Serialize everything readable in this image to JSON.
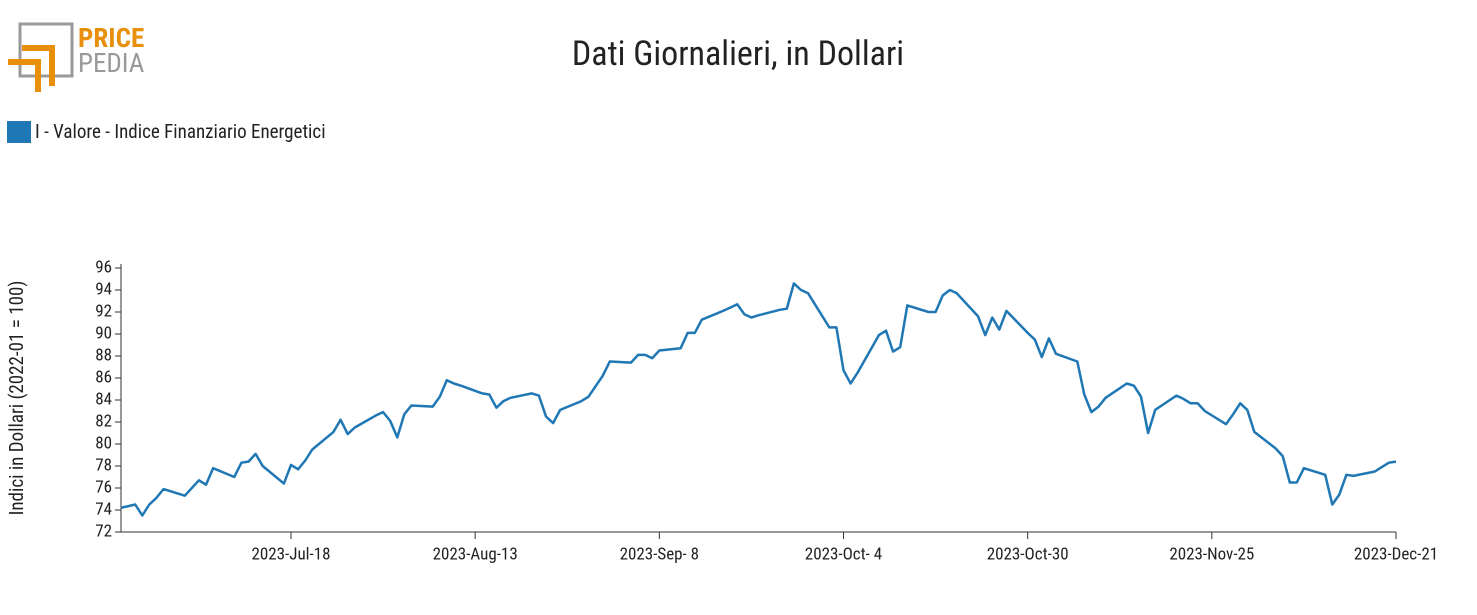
{
  "logo": {
    "line1": "PRICE",
    "line2": "PEDIA"
  },
  "chart_data": {
    "type": "line",
    "title": "Dati Giornalieri, in Dollari",
    "y_label": "Indici in Dollari (2022-01 = 100)",
    "legend_position": "top-left",
    "xlim": [
      "2023-06-24",
      "2023-12-21"
    ],
    "xticks": [
      {
        "value": "2023-07-18",
        "label": "2023-Jul-18"
      },
      {
        "value": "2023-08-13",
        "label": "2023-Aug-13"
      },
      {
        "value": "2023-09-08",
        "label": "2023-Sep- 8"
      },
      {
        "value": "2023-10-04",
        "label": "2023-Oct- 4"
      },
      {
        "value": "2023-10-30",
        "label": "2023-Oct-30"
      },
      {
        "value": "2023-11-25",
        "label": "2023-Nov-25"
      },
      {
        "value": "2023-12-21",
        "label": "2023-Dec-21"
      }
    ],
    "ylim": [
      72,
      96
    ],
    "yticks": [
      72,
      74,
      76,
      78,
      80,
      82,
      84,
      86,
      88,
      90,
      92,
      94,
      96
    ],
    "x": [
      "2023-06-24",
      "2023-06-26",
      "2023-06-27",
      "2023-06-28",
      "2023-06-29",
      "2023-06-30",
      "2023-07-03",
      "2023-07-05",
      "2023-07-06",
      "2023-07-07",
      "2023-07-10",
      "2023-07-11",
      "2023-07-12",
      "2023-07-13",
      "2023-07-14",
      "2023-07-17",
      "2023-07-18",
      "2023-07-19",
      "2023-07-20",
      "2023-07-21",
      "2023-07-24",
      "2023-07-25",
      "2023-07-26",
      "2023-07-27",
      "2023-07-30",
      "2023-07-31",
      "2023-08-01",
      "2023-08-02",
      "2023-08-03",
      "2023-08-04",
      "2023-08-07",
      "2023-08-08",
      "2023-08-09",
      "2023-08-10",
      "2023-08-11",
      "2023-08-14",
      "2023-08-15",
      "2023-08-16",
      "2023-08-17",
      "2023-08-18",
      "2023-08-21",
      "2023-08-22",
      "2023-08-23",
      "2023-08-24",
      "2023-08-25",
      "2023-08-28",
      "2023-08-29",
      "2023-08-31",
      "2023-09-01",
      "2023-09-04",
      "2023-09-05",
      "2023-09-06",
      "2023-09-07",
      "2023-09-08",
      "2023-09-11",
      "2023-09-12",
      "2023-09-13",
      "2023-09-14",
      "2023-09-17",
      "2023-09-18",
      "2023-09-19",
      "2023-09-20",
      "2023-09-21",
      "2023-09-22",
      "2023-09-25",
      "2023-09-26",
      "2023-09-27",
      "2023-09-28",
      "2023-09-29",
      "2023-10-02",
      "2023-10-03",
      "2023-10-04",
      "2023-10-05",
      "2023-10-06",
      "2023-10-09",
      "2023-10-10",
      "2023-10-11",
      "2023-10-12",
      "2023-10-13",
      "2023-10-16",
      "2023-10-17",
      "2023-10-18",
      "2023-10-19",
      "2023-10-20",
      "2023-10-23",
      "2023-10-24",
      "2023-10-25",
      "2023-10-26",
      "2023-10-27",
      "2023-10-30",
      "2023-10-31",
      "2023-11-01",
      "2023-11-02",
      "2023-11-03",
      "2023-11-06",
      "2023-11-07",
      "2023-11-08",
      "2023-11-09",
      "2023-11-10",
      "2023-11-13",
      "2023-11-14",
      "2023-11-15",
      "2023-11-16",
      "2023-11-17",
      "2023-11-20",
      "2023-11-21",
      "2023-11-22",
      "2023-11-23",
      "2023-11-24",
      "2023-11-27",
      "2023-11-28",
      "2023-11-29",
      "2023-11-30",
      "2023-12-01",
      "2023-12-04",
      "2023-12-05",
      "2023-12-06",
      "2023-12-07",
      "2023-12-08",
      "2023-12-11",
      "2023-12-12",
      "2023-12-13",
      "2023-12-14",
      "2023-12-15",
      "2023-12-18",
      "2023-12-19",
      "2023-12-20",
      "2023-12-21"
    ],
    "series": [
      {
        "name": "I - Valore - Indice Finanziario Energetici",
        "color": "#1f77b4",
        "values": [
          74.2,
          74.5,
          73.5,
          74.5,
          75.1,
          75.9,
          75.3,
          76.7,
          76.3,
          77.8,
          77.0,
          78.3,
          78.4,
          79.1,
          78.0,
          76.4,
          78.1,
          77.7,
          78.5,
          79.5,
          81.1,
          82.2,
          80.9,
          81.5,
          82.6,
          82.9,
          82.1,
          80.6,
          82.7,
          83.5,
          83.4,
          84.3,
          85.8,
          85.5,
          85.3,
          84.6,
          84.5,
          83.3,
          83.9,
          84.2,
          84.6,
          84.4,
          82.5,
          81.9,
          83.1,
          83.9,
          84.3,
          86.2,
          87.5,
          87.4,
          88.1,
          88.1,
          87.8,
          88.5,
          88.7,
          90.1,
          90.1,
          91.3,
          92.1,
          92.4,
          92.7,
          91.8,
          91.5,
          91.7,
          92.2,
          92.3,
          94.6,
          94.0,
          93.7,
          90.6,
          90.6,
          86.7,
          85.5,
          86.5,
          89.9,
          90.3,
          88.4,
          88.8,
          92.6,
          92.0,
          92.0,
          93.5,
          94.0,
          93.7,
          91.6,
          89.9,
          91.5,
          90.4,
          92.1,
          90.1,
          89.5,
          87.9,
          89.6,
          88.2,
          87.5,
          84.5,
          82.9,
          83.4,
          84.2,
          85.5,
          85.3,
          84.3,
          81.0,
          83.1,
          84.4,
          84.1,
          83.7,
          83.7,
          83.0,
          81.8,
          82.7,
          83.7,
          83.1,
          81.1,
          79.6,
          78.9,
          76.5,
          76.5,
          77.8,
          77.2,
          74.5,
          75.4,
          77.2,
          77.1,
          77.5,
          77.9,
          78.3,
          78.4
        ]
      }
    ]
  }
}
